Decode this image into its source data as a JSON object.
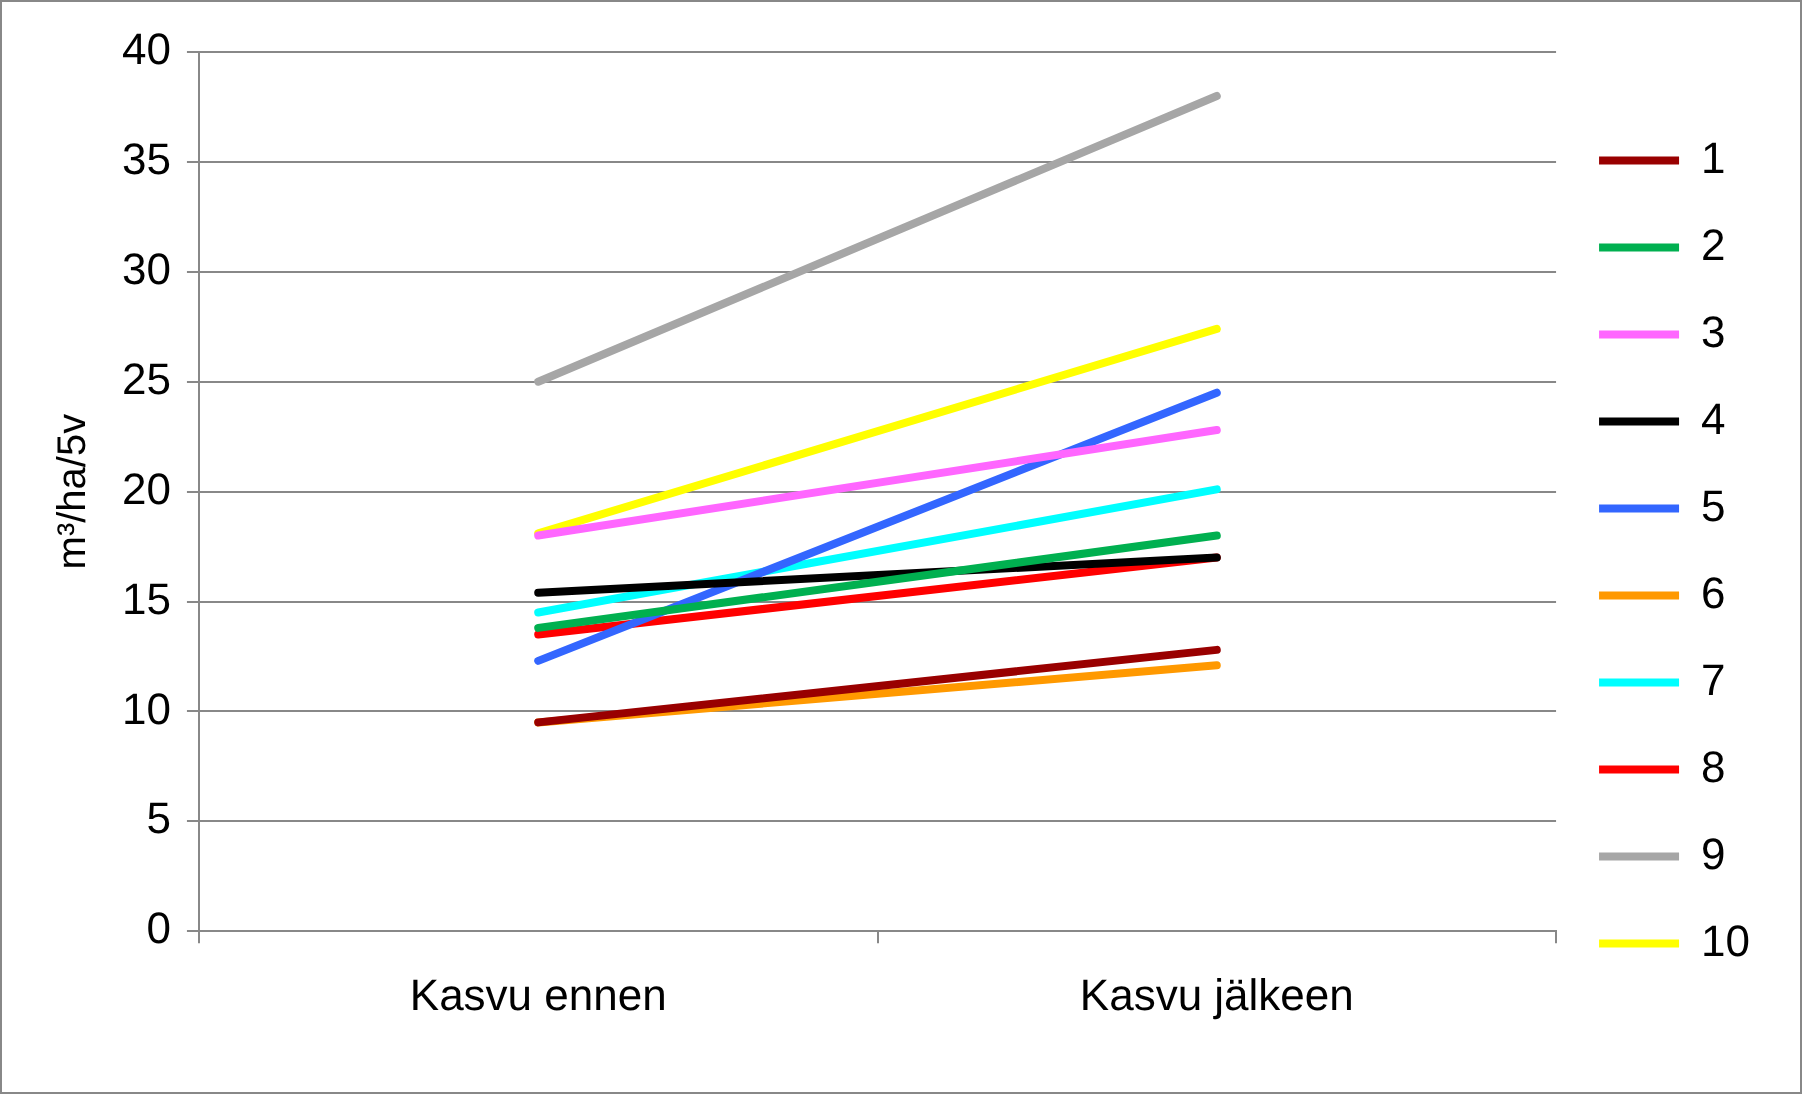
{
  "chart_data": {
    "type": "line",
    "ylabel": "m³/ha/5v",
    "categories": [
      "Kasvu ennen",
      "Kasvu jälkeen"
    ],
    "ylim": [
      0,
      40
    ],
    "yticks": [
      0,
      5,
      10,
      15,
      20,
      25,
      30,
      35,
      40
    ],
    "grid": "y",
    "legend": "right",
    "marker": "none",
    "line_style": "solid",
    "series": [
      {
        "name": "1",
        "color": "#990000",
        "values": [
          9.5,
          12.8
        ]
      },
      {
        "name": "2",
        "color": "#00b050",
        "values": [
          13.8,
          18.0
        ]
      },
      {
        "name": "3",
        "color": "#ff66ff",
        "values": [
          18.0,
          22.8
        ]
      },
      {
        "name": "4",
        "color": "#000000",
        "values": [
          15.4,
          17.0
        ]
      },
      {
        "name": "5",
        "color": "#3366ff",
        "values": [
          12.3,
          24.5
        ]
      },
      {
        "name": "6",
        "color": "#ff9900",
        "values": [
          9.5,
          12.1
        ]
      },
      {
        "name": "7",
        "color": "#00ffff",
        "values": [
          14.5,
          20.1
        ]
      },
      {
        "name": "8",
        "color": "#ff0000",
        "values": [
          13.5,
          17.0
        ]
      },
      {
        "name": "9",
        "color": "#a6a6a6",
        "values": [
          25.0,
          38.0
        ]
      },
      {
        "name": "10",
        "color": "#ffff00",
        "values": [
          18.1,
          27.4
        ]
      }
    ]
  }
}
